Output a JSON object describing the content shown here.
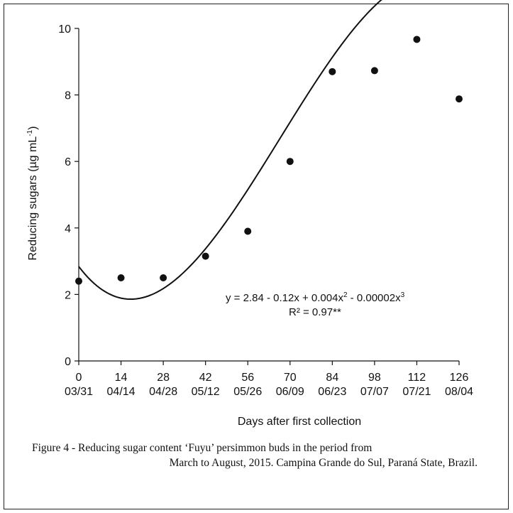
{
  "chart_data": {
    "type": "scatter",
    "ylabel": "Reducing sugars (µg mL",
    "ylabel_sup": "-1",
    "ylabel_close": ")",
    "xlabel": "Days after first collection",
    "ylim": [
      0,
      10
    ],
    "xlim": [
      0,
      126
    ],
    "y_ticks": [
      0,
      2,
      4,
      6,
      8,
      10
    ],
    "x_ticks": [
      0,
      14,
      28,
      42,
      56,
      70,
      84,
      98,
      112,
      126
    ],
    "x_tick_labels": [
      "0",
      "14",
      "28",
      "42",
      "56",
      "70",
      "84",
      "98",
      "112",
      "126"
    ],
    "x_date_labels": [
      "03/31",
      "04/14",
      "04/28",
      "05/12",
      "05/26",
      "06/09",
      "06/23",
      "07/07",
      "07/21",
      "08/04"
    ],
    "points": [
      {
        "x": 0,
        "y": 2.4
      },
      {
        "x": 14,
        "y": 2.5
      },
      {
        "x": 28,
        "y": 2.5
      },
      {
        "x": 42,
        "y": 3.15
      },
      {
        "x": 56,
        "y": 3.9
      },
      {
        "x": 70,
        "y": 6.0
      },
      {
        "x": 84,
        "y": 8.7
      },
      {
        "x": 98,
        "y": 8.73
      },
      {
        "x": 112,
        "y": 9.67
      },
      {
        "x": 126,
        "y": 7.88
      }
    ],
    "fit": {
      "type": "cubic",
      "coefficients": [
        2.84,
        -0.12,
        0.004,
        -2e-05
      ],
      "equation_parts": [
        "y = 2.84 - 0.12x + 0.004x",
        "2",
        " - 0.00002x",
        "3"
      ],
      "r2_label": "R² = 0.97**"
    },
    "grid": false,
    "legend": "none"
  },
  "caption": {
    "line1": "Figure 4 - Reducing sugar content ‘Fuyu’ persimmon buds in the period from",
    "line2": "March to August, 2015. Campina Grande do Sul, Paraná State, Brazil."
  }
}
